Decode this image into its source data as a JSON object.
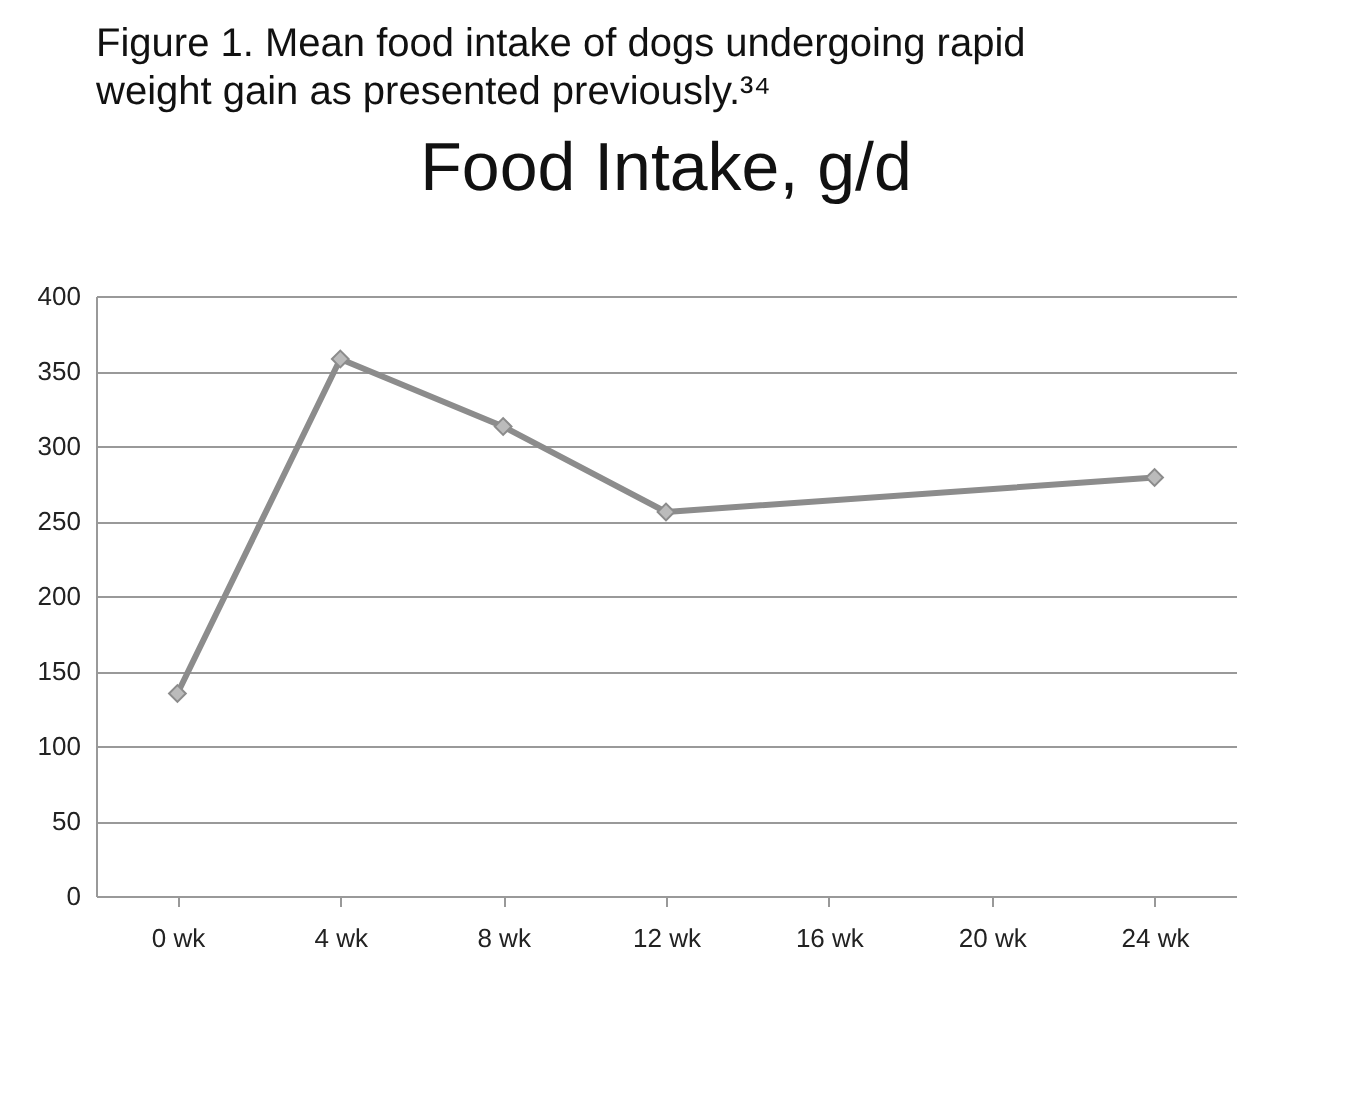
{
  "chart_data": {
    "type": "line",
    "title": "Food Intake, g/d",
    "annotations": [
      "Figure 1. Mean food intake of dogs undergoing rapid weight gain as presented previously.³⁴"
    ],
    "categories": [
      "0 wk",
      "4 wk",
      "8 wk",
      "12 wk",
      "16 wk",
      "20 wk",
      "24 wk"
    ],
    "series": [
      {
        "color": "#8c8c8c",
        "values": [
          135,
          358,
          313,
          256,
          null,
          null,
          279
        ]
      }
    ],
    "ylim": [
      0,
      400
    ],
    "yticks": [
      0,
      50,
      100,
      150,
      200,
      250,
      300,
      350,
      400
    ],
    "grid": "y",
    "marker": "diamond",
    "line_style": "solid"
  }
}
